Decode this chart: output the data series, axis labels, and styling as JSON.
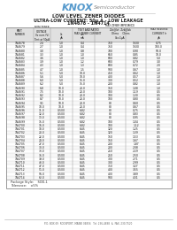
{
  "title1": "LOW LEVEL ZENER DIODES",
  "title2": "ULTRA-LOW CURRENT: 50μ A - LOW LEAKAGE",
  "title3": "1N4678 - 1N4714",
  "logo_knox": "KNOX",
  "logo_semi": "Semiconductor",
  "rows": [
    [
      "1N4678",
      "2.4",
      "1.0",
      "0.4",
      "750",
      "1500",
      "0.75"
    ],
    [
      "1N4679",
      "2.7",
      "1.0",
      "0.4",
      "750",
      "1500",
      "100.0"
    ],
    [
      "1N4680",
      "3.0",
      "1.0",
      "0.8",
      "700",
      "0.90",
      "50.0"
    ],
    [
      "1N4681",
      "3.3",
      "1.0",
      "1.0",
      "650",
      "0.85",
      "10.0"
    ],
    [
      "1N4682",
      "3.6",
      "1.0",
      "1.0",
      "600",
      "0.82",
      "5.0"
    ],
    [
      "1N4683",
      "3.9",
      "1.0",
      "1.2",
      "600",
      "0.79",
      "3.0"
    ],
    [
      "1N4684",
      "4.3",
      "1.0",
      "1.3",
      "600",
      "0.72",
      "2.0"
    ],
    [
      "1N4685",
      "4.7",
      "1.0",
      "1.5",
      "500",
      "0.67",
      "1.0"
    ],
    [
      "1N4686",
      "5.1",
      "5.0",
      "10.0",
      "450",
      "0.62",
      "1.0"
    ],
    [
      "1N4687",
      "5.6",
      "5.0",
      "10.0",
      "400",
      "0.57",
      "1.0"
    ],
    [
      "1N4688",
      "6.0",
      "5.0",
      "15.0",
      "300",
      "0.52",
      "1.0"
    ],
    [
      "1N4689",
      "6.2",
      "5.0",
      "15.0",
      "200",
      "0.82",
      "1.0"
    ],
    [
      "1N4690",
      "6.8",
      "10.0",
      "20.0",
      "150",
      "1.08",
      "1.0"
    ],
    [
      "1N4691",
      "7.5",
      "10.0",
      "20.0",
      "100",
      "1.19",
      "0.5"
    ],
    [
      "1N4692",
      "8.2",
      "10.0",
      "20.0",
      "100",
      "1.30",
      "0.5"
    ],
    [
      "1N4693",
      "8.7",
      "10.0",
      "20.0",
      "100",
      "0.80",
      "0.5"
    ],
    [
      "1N4694",
      "9.1",
      "10.0",
      "20.0",
      "80",
      "0.60",
      "0.5"
    ],
    [
      "1N4695",
      "10.0",
      "10.0",
      "20.0",
      "80",
      "0.67",
      "0.5"
    ],
    [
      "1N4696",
      "11.0",
      "0.500",
      "6.82",
      "80",
      "0.75",
      "0.5"
    ],
    [
      "1N4697",
      "12.0",
      "0.500",
      "6.82",
      "80",
      "0.83",
      "0.5"
    ],
    [
      "1N4698",
      "13.0",
      "0.500",
      "6.82",
      "80",
      "0.95",
      "0.5"
    ],
    [
      "1N4699",
      "15.0",
      "0.500",
      "6.82",
      "100",
      "1.04",
      "0.5"
    ],
    [
      "1N4700",
      "16.0",
      "0.500",
      "6.82",
      "100",
      "1.12",
      "0.5"
    ],
    [
      "1N4701",
      "18.0",
      "0.500",
      "8.45",
      "120",
      "1.25",
      "0.5"
    ],
    [
      "1N4702",
      "20.0",
      "0.500",
      "8.45",
      "120",
      "1.39",
      "0.5"
    ],
    [
      "1N4703",
      "22.0",
      "0.500",
      "8.45",
      "150",
      "1.53",
      "0.5"
    ],
    [
      "1N4704",
      "24.0",
      "0.500",
      "8.45",
      "150",
      "1.67",
      "0.5"
    ],
    [
      "1N4705",
      "27.0",
      "0.500",
      "8.45",
      "200",
      "1.87",
      "0.5"
    ],
    [
      "1N4706",
      "30.0",
      "0.500",
      "8.45",
      "200",
      "2.08",
      "0.5"
    ],
    [
      "1N4707",
      "33.0",
      "0.500",
      "8.45",
      "250",
      "2.29",
      "0.5"
    ],
    [
      "1N4708",
      "36.0",
      "0.500",
      "8.45",
      "250",
      "2.50",
      "0.5"
    ],
    [
      "1N4709",
      "39.0",
      "0.500",
      "8.45",
      "300",
      "2.71",
      "0.5"
    ],
    [
      "1N4710",
      "43.0",
      "0.500",
      "8.45",
      "300",
      "2.99",
      "0.5"
    ],
    [
      "1N4711",
      "47.0",
      "0.500",
      "8.45",
      "350",
      "3.27",
      "0.5"
    ],
    [
      "1N4712",
      "51.0",
      "0.500",
      "8.45",
      "400",
      "3.55",
      "0.5"
    ],
    [
      "1N4713",
      "56.0",
      "0.500",
      "8.45",
      "400",
      "3.89",
      "0.5"
    ],
    [
      "1N4714",
      "62.0",
      "0.500",
      "8.45",
      "500",
      "4.31",
      "0.5"
    ]
  ],
  "footer_note1": "Package Style:    SOD-1",
  "footer_note2": "Tolerance:    ±5%",
  "address": "P.O. BOX 69  ROCKPORT, MAINE 04856   Tel: 236-4888  &  FAX: 230-7520",
  "bg_color": "#ffffff",
  "logo_color": "#5599cc",
  "semi_color": "#888888",
  "text_color": "#222222",
  "table_border": "#999999",
  "row_line": "#cccccc",
  "header_bg": "#e0e0e0"
}
